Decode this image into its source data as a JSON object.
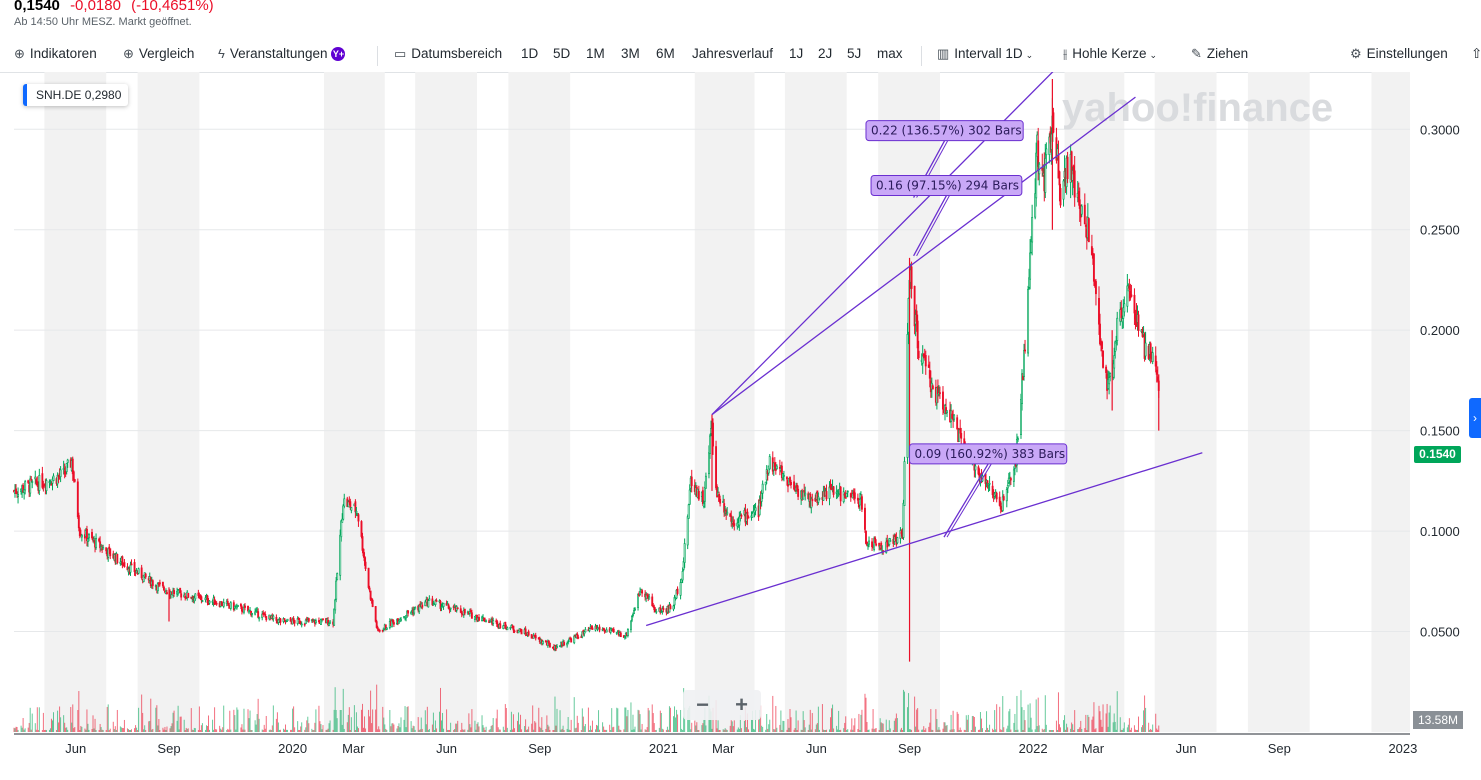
{
  "quote": {
    "price": "0,1540",
    "change": "-0,0180",
    "change_pct": "(-10,4651%)",
    "note": "Ab 14:50 Uhr MESZ. Markt geöffnet."
  },
  "toolbar": {
    "indicators": "Indikatoren",
    "compare": "Vergleich",
    "events": "Veranstaltungen",
    "events_badge": "Y+",
    "date_range": "Datumsbereich",
    "ranges": [
      "1D",
      "5D",
      "1M",
      "3M",
      "6M",
      "Jahresverlauf",
      "1J",
      "2J",
      "5J",
      "max"
    ],
    "interval": "Intervall",
    "interval_value": "1D",
    "chart_type": "Hohle Kerze",
    "draw": "Ziehen",
    "settings": "Einstellungen"
  },
  "symbol": {
    "ticker": "SNH.DE",
    "value": "0,2980"
  },
  "watermark": "yahoo!finance",
  "current_price_tag": "0.1540",
  "volume_tag": "13.58M",
  "zoom": {
    "minus": "−",
    "plus": "+"
  },
  "colors": {
    "up": "#00a65a",
    "down": "#eb0f29",
    "drawing": "#6a2fd0",
    "annotation_fill": "#c9a8f7",
    "shade": "#f2f2f2"
  },
  "chart_data": {
    "type": "candlestick",
    "ticker": "SNH.DE",
    "y_ticks": [
      "0.3000",
      "0.2500",
      "0.2000",
      "0.1500",
      "0.1000",
      "0.0500"
    ],
    "y_tick_values": [
      0.3,
      0.25,
      0.2,
      0.15,
      0.1,
      0.05
    ],
    "ylim": [
      0.0,
      0.3285
    ],
    "x_ticks": [
      "Jun",
      "Sep",
      "2020",
      "Mar",
      "Jun",
      "Sep",
      "2021",
      "Mar",
      "Jun",
      "Sep",
      "2022",
      "Mar",
      "Jun",
      "Sep",
      "2023"
    ],
    "x_tick_dates": [
      "2019-06-01",
      "2019-09-01",
      "2020-01-01",
      "2020-03-01",
      "2020-06-01",
      "2020-09-01",
      "2021-01-01",
      "2021-03-01",
      "2021-06-01",
      "2021-09-01",
      "2022-01-01",
      "2022-03-01",
      "2022-06-01",
      "2022-09-01",
      "2023-01-01"
    ],
    "x_range": [
      "2019-04-01",
      "2023-01-08"
    ],
    "shaded_months": [
      [
        "2019-05-01",
        "2019-07-01"
      ],
      [
        "2019-08-01",
        "2019-10-01"
      ],
      [
        "2020-02-01",
        "2020-04-01"
      ],
      [
        "2020-05-01",
        "2020-07-01"
      ],
      [
        "2020-08-01",
        "2020-10-01"
      ],
      [
        "2021-02-01",
        "2021-04-01"
      ],
      [
        "2021-05-01",
        "2021-07-01"
      ],
      [
        "2021-08-01",
        "2021-10-01"
      ],
      [
        "2022-02-01",
        "2022-04-01"
      ],
      [
        "2022-05-01",
        "2022-07-01"
      ],
      [
        "2022-08-01",
        "2022-10-01"
      ],
      [
        "2022-12-01",
        "2023-01-08"
      ]
    ],
    "price_path": [
      [
        "2019-04-01",
        0.12
      ],
      [
        "2019-05-20",
        0.128
      ],
      [
        "2019-05-28",
        0.135
      ],
      [
        "2019-06-05",
        0.1
      ],
      [
        "2019-07-15",
        0.085
      ],
      [
        "2019-08-20",
        0.073
      ],
      [
        "2019-09-01",
        0.07
      ],
      [
        "2019-10-15",
        0.065
      ],
      [
        "2019-11-20",
        0.06
      ],
      [
        "2019-12-20",
        0.055
      ],
      [
        "2020-01-20",
        0.055
      ],
      [
        "2020-02-10",
        0.055
      ],
      [
        "2020-02-20",
        0.115
      ],
      [
        "2020-03-05",
        0.11
      ],
      [
        "2020-03-15",
        0.075
      ],
      [
        "2020-03-25",
        0.05
      ],
      [
        "2020-04-20",
        0.058
      ],
      [
        "2020-05-15",
        0.065
      ],
      [
        "2020-06-15",
        0.06
      ],
      [
        "2020-07-15",
        0.055
      ],
      [
        "2020-08-15",
        0.05
      ],
      [
        "2020-09-15",
        0.042
      ],
      [
        "2020-10-10",
        0.048
      ],
      [
        "2020-10-25",
        0.052
      ],
      [
        "2020-11-25",
        0.048
      ],
      [
        "2020-12-10",
        0.072
      ],
      [
        "2020-12-25",
        0.06
      ],
      [
        "2021-01-10",
        0.062
      ],
      [
        "2021-01-20",
        0.08
      ],
      [
        "2021-01-28",
        0.125
      ],
      [
        "2021-02-10",
        0.115
      ],
      [
        "2021-02-18",
        0.155
      ],
      [
        "2021-02-22",
        0.12
      ],
      [
        "2021-03-10",
        0.105
      ],
      [
        "2021-04-05",
        0.11
      ],
      [
        "2021-04-15",
        0.135
      ],
      [
        "2021-05-05",
        0.125
      ],
      [
        "2021-05-25",
        0.115
      ],
      [
        "2021-06-15",
        0.12
      ],
      [
        "2021-07-15",
        0.115
      ],
      [
        "2021-07-20",
        0.095
      ],
      [
        "2021-08-05",
        0.092
      ],
      [
        "2021-08-25",
        0.098
      ],
      [
        "2021-09-01",
        0.23
      ],
      [
        "2021-09-10",
        0.19
      ],
      [
        "2021-09-25",
        0.17
      ],
      [
        "2021-10-10",
        0.16
      ],
      [
        "2021-10-25",
        0.14
      ],
      [
        "2021-11-15",
        0.125
      ],
      [
        "2021-12-01",
        0.112
      ],
      [
        "2021-12-15",
        0.135
      ],
      [
        "2021-12-25",
        0.2
      ],
      [
        "2022-01-05",
        0.29
      ],
      [
        "2022-01-12",
        0.275
      ],
      [
        "2022-01-20",
        0.31
      ],
      [
        "2022-01-28",
        0.27
      ],
      [
        "2022-02-05",
        0.285
      ],
      [
        "2022-02-15",
        0.26
      ],
      [
        "2022-02-25",
        0.25
      ],
      [
        "2022-03-05",
        0.21
      ],
      [
        "2022-03-10",
        0.19
      ],
      [
        "2022-03-15",
        0.17
      ],
      [
        "2022-03-25",
        0.2
      ],
      [
        "2022-04-05",
        0.225
      ],
      [
        "2022-04-12",
        0.205
      ],
      [
        "2022-04-22",
        0.19
      ],
      [
        "2022-05-01",
        0.185
      ],
      [
        "2022-05-05",
        0.172
      ]
    ],
    "spikes": [
      [
        "2019-09-01",
        0.055,
        0.072
      ],
      [
        "2021-09-01",
        0.035,
        0.236
      ],
      [
        "2021-02-18",
        0.12,
        0.158
      ],
      [
        "2022-01-20",
        0.25,
        0.325
      ],
      [
        "2022-03-20",
        0.16,
        0.2
      ],
      [
        "2022-05-05",
        0.15,
        0.178
      ]
    ],
    "trendlines": [
      {
        "from": [
          "2021-02-18",
          0.158
        ],
        "to": [
          "2022-02-01",
          0.3345
        ]
      },
      {
        "from": [
          "2021-02-18",
          0.158
        ],
        "to": [
          "2022-04-12",
          0.316
        ]
      },
      {
        "from": [
          "2020-12-15",
          0.053
        ],
        "to": [
          "2022-06-17",
          0.139
        ]
      }
    ],
    "annotations": [
      {
        "text": "0.22 (136.57%) 302 Bars",
        "point": [
          "2021-09-05",
          0.266
        ],
        "box_anchor": [
          "2021-07-20",
          0.2993
        ],
        "connect": true
      },
      {
        "text": "0.16 (97.15%) 294 Bars",
        "point": [
          "2021-09-05",
          0.237
        ],
        "box_anchor": [
          "2021-07-25",
          0.272
        ],
        "connect": true
      },
      {
        "text": "0.09 (160.92%) 383 Bars",
        "point": [
          "2021-10-05",
          0.097
        ],
        "box_anchor": [
          "2021-09-01",
          0.1384
        ],
        "connect": true
      }
    ]
  }
}
